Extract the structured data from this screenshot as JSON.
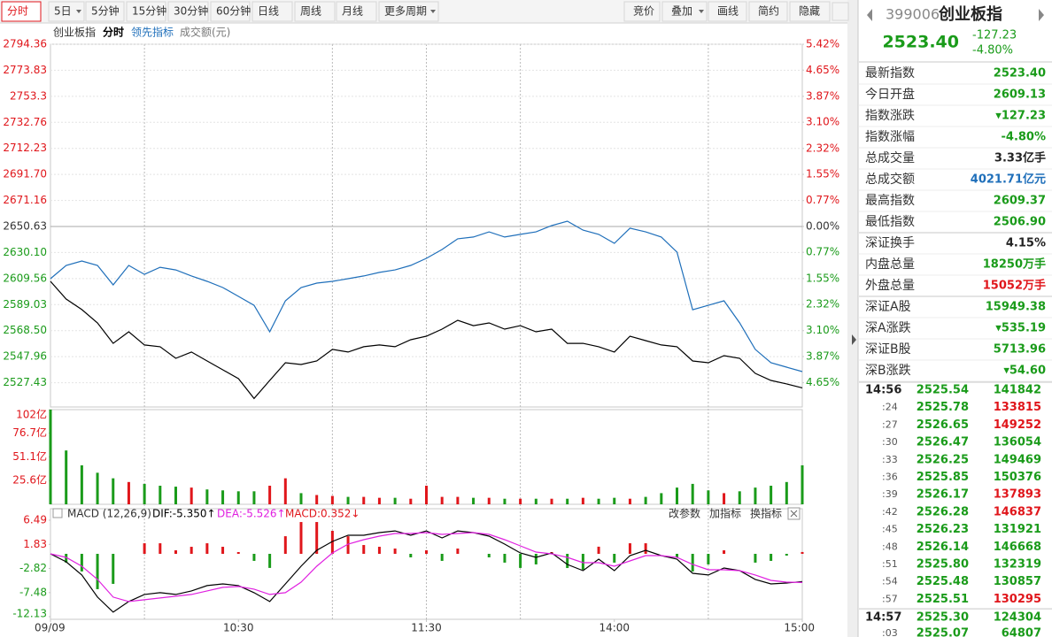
{
  "toolbar": {
    "left": [
      "分时",
      "5日",
      "5分钟",
      "15分钟",
      "30分钟",
      "60分钟",
      "日线",
      "周线",
      "月线",
      "更多周期"
    ],
    "right": [
      "竞价",
      "叠加",
      "画线",
      "简约",
      "隐藏"
    ]
  },
  "chart_data": [
    {
      "type": "line",
      "title": "创业板指",
      "x": [
        0,
        5,
        10,
        15,
        20,
        25,
        30,
        35,
        40,
        45,
        50,
        55,
        60,
        65,
        70,
        75,
        80,
        85,
        90,
        95,
        100,
        105,
        110,
        115,
        120,
        125,
        130,
        135,
        140,
        145,
        150,
        155,
        160,
        165,
        170,
        175,
        180,
        185,
        190,
        195,
        200,
        205,
        210,
        215,
        220,
        225,
        230,
        235,
        240
      ],
      "xlim": [
        0,
        240
      ],
      "xgrid": [
        30,
        90,
        120,
        150,
        210
      ],
      "series": [
        {
          "name": "分时",
          "color": "#000000",
          "values": [
            2607.4,
            2593.4,
            2585.1,
            2574.6,
            2558.5,
            2567.6,
            2557.2,
            2555.8,
            2546.7,
            2551.6,
            2544.6,
            2537.6,
            2530.6,
            2515.0,
            2529.2,
            2543.2,
            2541.8,
            2544.6,
            2553.7,
            2551.6,
            2555.8,
            2557.2,
            2555.8,
            2561.3,
            2564.1,
            2569.7,
            2576.7,
            2572.4,
            2574.6,
            2569.7,
            2572.4,
            2567.6,
            2569.7,
            2558.5,
            2558.5,
            2555.8,
            2551.6,
            2564.1,
            2560.6,
            2557.2,
            2555.8,
            2544.6,
            2543.2,
            2548.8,
            2546.7,
            2534.8,
            2529.2,
            2526.5,
            2523.4
          ]
        },
        {
          "name": "领先指标",
          "color": "#1f6fba",
          "values": [
            2609.5,
            2619.9,
            2623.4,
            2619.9,
            2604.6,
            2619.9,
            2612.9,
            2618.5,
            2616.4,
            2611.6,
            2607.4,
            2602.5,
            2595.5,
            2588.5,
            2567.6,
            2592.0,
            2602.5,
            2606.0,
            2607.4,
            2609.5,
            2611.6,
            2614.4,
            2616.4,
            2619.9,
            2625.5,
            2632.5,
            2640.9,
            2642.3,
            2646.4,
            2642.3,
            2644.4,
            2646.4,
            2651.3,
            2654.8,
            2647.8,
            2644.4,
            2637.4,
            2649.3,
            2646.4,
            2642.3,
            2630.4,
            2585.0,
            2588.5,
            2592.0,
            2574.6,
            2553.7,
            2543.2,
            2539.7,
            2536.2
          ]
        }
      ],
      "ylim": [
        2508.3,
        2794.36
      ],
      "yticks": [
        2794.36,
        2773.83,
        2753.3,
        2732.76,
        2712.23,
        {
          "value": 2691.7,
          "label": "2691.70"
        },
        2671.16,
        2650.63,
        {
          "value": 2630.1,
          "label": "2630.10"
        },
        2609.56,
        2589.03,
        {
          "value": 2568.5,
          "label": "2568.50"
        },
        2547.96,
        2527.43
      ],
      "y2lim": [
        -5.37,
        5.42
      ],
      "y2ticks": [
        {
          "value": 5.42,
          "label": "5.42%"
        },
        {
          "value": 4.65,
          "label": "4.65%"
        },
        {
          "value": 3.87,
          "label": "3.87%"
        },
        {
          "value": 3.1,
          "label": "3.10%"
        },
        {
          "value": 2.32,
          "label": "2.32%"
        },
        {
          "value": 1.55,
          "label": "1.55%"
        },
        {
          "value": 0.77,
          "label": "0.77%"
        },
        {
          "value": 0,
          "label": "0.00%"
        },
        {
          "value": -0.77,
          "label": "0.77%"
        },
        {
          "value": -1.55,
          "label": "1.55%"
        },
        {
          "value": -2.32,
          "label": "2.32%"
        },
        {
          "value": -3.1,
          "label": "3.10%"
        },
        {
          "value": -3.87,
          "label": "3.87%"
        },
        {
          "value": -4.65,
          "label": "4.65%"
        }
      ],
      "up_color": "#e0161b",
      "down_color": "#1a9b1a",
      "grid": true
    },
    {
      "type": "bar",
      "title": "成交额(元)",
      "x": [
        0,
        5,
        10,
        15,
        20,
        25,
        30,
        35,
        40,
        45,
        50,
        55,
        60,
        65,
        70,
        75,
        80,
        85,
        90,
        95,
        100,
        105,
        110,
        115,
        120,
        125,
        130,
        135,
        140,
        145,
        150,
        155,
        160,
        165,
        170,
        175,
        180,
        185,
        190,
        195,
        200,
        205,
        210,
        215,
        220,
        225,
        230,
        235,
        240
      ],
      "xlim": [
        0,
        240
      ],
      "values": [
        102,
        58,
        42,
        34,
        28,
        24,
        22,
        20,
        19,
        18,
        16,
        15,
        14,
        14,
        20,
        28,
        12,
        10,
        9,
        8,
        8,
        7,
        7,
        6,
        20,
        8,
        8,
        7,
        7,
        6,
        6,
        6,
        6,
        6,
        7,
        6,
        7,
        6,
        8,
        12,
        18,
        22,
        15,
        12,
        14,
        18,
        20,
        24,
        42
      ],
      "ylim": [
        0,
        102
      ],
      "yticks": [
        {
          "value": 102,
          "label": "102亿"
        },
        {
          "value": 76.7,
          "label": "76.7亿"
        },
        {
          "value": 51.1,
          "label": "51.1亿"
        },
        {
          "value": 25.6,
          "label": "25.6亿"
        }
      ],
      "up_color": "#e0161b",
      "down_color": "#1a9b1a"
    },
    {
      "type": "macd",
      "title": "MACD (12,26,9)",
      "x": [
        0,
        5,
        10,
        15,
        20,
        25,
        30,
        35,
        40,
        45,
        50,
        55,
        60,
        65,
        70,
        75,
        80,
        85,
        90,
        95,
        100,
        105,
        110,
        115,
        120,
        125,
        130,
        135,
        140,
        145,
        150,
        155,
        160,
        165,
        170,
        175,
        180,
        185,
        190,
        195,
        200,
        205,
        210,
        215,
        220,
        225,
        230,
        235,
        240
      ],
      "xlim": [
        0,
        240
      ],
      "xticks": [
        {
          "value": 0,
          "label": "09/09"
        },
        {
          "value": 60,
          "label": "10:30"
        },
        {
          "value": 120,
          "label": "11:30"
        },
        {
          "value": 180,
          "label": "14:00"
        },
        {
          "value": 240,
          "label": "15:00"
        }
      ],
      "series": [
        {
          "name": "DIF:-5.350↑",
          "kind": "line",
          "color": "#000000",
          "values": [
            0,
            -1.53,
            -4.09,
            -8.35,
            -11.25,
            -9.2,
            -7.84,
            -7.5,
            -7.84,
            -7.16,
            -6.14,
            -5.8,
            -6.14,
            -7.5,
            -9.2,
            -5.8,
            -2.39,
            0.68,
            2.39,
            3.58,
            3.58,
            4.09,
            4.43,
            3.58,
            4.43,
            3.07,
            4.43,
            4.09,
            3.41,
            1.88,
            0.17,
            -0.68,
            0.17,
            -2.05,
            -3.24,
            -1.02,
            -3.24,
            -0.34,
            0.68,
            -0.34,
            -1.02,
            -3.75,
            -4.09,
            -2.73,
            -3.24,
            -4.94,
            -5.8,
            -5.63,
            -5.35
          ]
        },
        {
          "name": "DEA:-5.526↑",
          "kind": "line",
          "color": "#e020e0",
          "values": [
            0,
            -0.68,
            -2.39,
            -4.94,
            -8.35,
            -9.2,
            -8.86,
            -8.52,
            -8.18,
            -7.84,
            -7.16,
            -6.48,
            -6.31,
            -6.82,
            -7.84,
            -7.5,
            -5.46,
            -2.39,
            0.17,
            1.88,
            2.73,
            3.41,
            3.92,
            3.92,
            4.09,
            3.75,
            3.92,
            4.09,
            3.75,
            2.73,
            1.53,
            0.34,
            0,
            -0.68,
            -1.71,
            -1.71,
            -2.39,
            -1.36,
            -0.34,
            -0.34,
            -0.68,
            -2.05,
            -3.07,
            -3.07,
            -3.24,
            -4.09,
            -5.12,
            -5.46,
            -5.53
          ]
        },
        {
          "name": "MACD:0.352↓",
          "kind": "bar",
          "color": "#e0161b",
          "down_color": "#1a9b1a",
          "values": [
            0,
            -1.7,
            -3.4,
            -6.82,
            -5.8,
            0,
            2.04,
            2.04,
            0.68,
            1.36,
            2.04,
            1.36,
            0.34,
            -1.36,
            -2.72,
            3.4,
            6.14,
            6.14,
            4.44,
            3.4,
            1.7,
            1.36,
            1.02,
            -0.68,
            0.68,
            -1.36,
            1.02,
            0,
            -0.68,
            -1.7,
            -2.72,
            -2.04,
            0.34,
            -2.74,
            -3.06,
            1.38,
            -1.7,
            2.04,
            2.04,
            0,
            -0.68,
            -3.4,
            -2.04,
            0.68,
            0,
            -1.7,
            -1.36,
            -0.34,
            0.35
          ]
        }
      ],
      "ylim": [
        -12.64,
        8.71
      ],
      "yticks": [
        6.49,
        1.83,
        -2.82,
        -7.48,
        -12.13
      ],
      "controls": [
        "改参数",
        "加指标",
        "换指标"
      ],
      "up_color": "#e0161b",
      "down_color": "#1a9b1a"
    }
  ],
  "quote": {
    "code": "399006",
    "name": "创业板指",
    "price": "2523.40",
    "change": "-127.23",
    "change_pct": "-4.80%",
    "color": "#1a9b1a",
    "stats": [
      [
        {
          "label": "最新指数",
          "value": "2523.40",
          "color": "#1a9b1a"
        },
        {
          "label": "今日开盘",
          "value": "2609.13",
          "color": "#1a9b1a"
        },
        {
          "label": "指数涨跌",
          "value": "▾127.23",
          "color": "#1a9b1a"
        },
        {
          "label": "指数涨幅",
          "value": "-4.80%",
          "color": "#1a9b1a"
        },
        {
          "label": "总成交量",
          "value": "3.33亿手",
          "color": "#222222"
        },
        {
          "label": "总成交额",
          "value": "4021.71亿元",
          "color": "#1f6fba"
        },
        {
          "label": "最高指数",
          "value": "2609.37",
          "color": "#1a9b1a"
        },
        {
          "label": "最低指数",
          "value": "2506.90",
          "color": "#1a9b1a"
        }
      ],
      [
        {
          "label": "深证换手",
          "value": "4.15%",
          "color": "#222222"
        },
        {
          "label": "内盘总量",
          "value": "18250万手",
          "color": "#1a9b1a"
        },
        {
          "label": "外盘总量",
          "value": "15052万手",
          "color": "#e0161b"
        }
      ],
      [
        {
          "label": "深证A股",
          "value": "15949.38",
          "color": "#1a9b1a"
        },
        {
          "label": "深A涨跌",
          "value": "▾535.19",
          "color": "#1a9b1a"
        },
        {
          "label": "深证B股",
          "value": "5713.96",
          "color": "#1a9b1a"
        },
        {
          "label": "深B涨跌",
          "value": "▾54.60",
          "color": "#1a9b1a"
        }
      ]
    ],
    "ticks": [
      [
        {
          "time": "14:56",
          "price": "2525.54",
          "volume": "141842",
          "color": "#1a9b1a"
        },
        {
          "time": ":24",
          "price": "2525.78",
          "volume": "133815",
          "color": "#e0161b"
        },
        {
          "time": ":27",
          "price": "2526.65",
          "volume": "149252",
          "color": "#e0161b"
        },
        {
          "time": ":30",
          "price": "2526.47",
          "volume": "136054",
          "color": "#1a9b1a"
        },
        {
          "time": ":33",
          "price": "2526.25",
          "volume": "149469",
          "color": "#1a9b1a"
        },
        {
          "time": ":36",
          "price": "2525.85",
          "volume": "150376",
          "color": "#1a9b1a"
        },
        {
          "time": ":39",
          "price": "2526.17",
          "volume": "137893",
          "color": "#e0161b"
        },
        {
          "time": ":42",
          "price": "2526.28",
          "volume": "146837",
          "color": "#e0161b"
        },
        {
          "time": ":45",
          "price": "2526.23",
          "volume": "131921",
          "color": "#1a9b1a"
        },
        {
          "time": ":48",
          "price": "2526.14",
          "volume": "146668",
          "color": "#1a9b1a"
        },
        {
          "time": ":51",
          "price": "2525.80",
          "volume": "132319",
          "color": "#1a9b1a"
        },
        {
          "time": ":54",
          "price": "2525.48",
          "volume": "130857",
          "color": "#1a9b1a"
        },
        {
          "time": ":57",
          "price": "2525.51",
          "volume": "130295",
          "color": "#e0161b"
        }
      ],
      [
        {
          "time": "14:57",
          "price": "2525.30",
          "volume": "124304",
          "color": "#1a9b1a"
        },
        {
          "time": ":03",
          "price": "2525.07",
          "volume": "64807",
          "color": "#1a9b1a"
        }
      ]
    ]
  }
}
